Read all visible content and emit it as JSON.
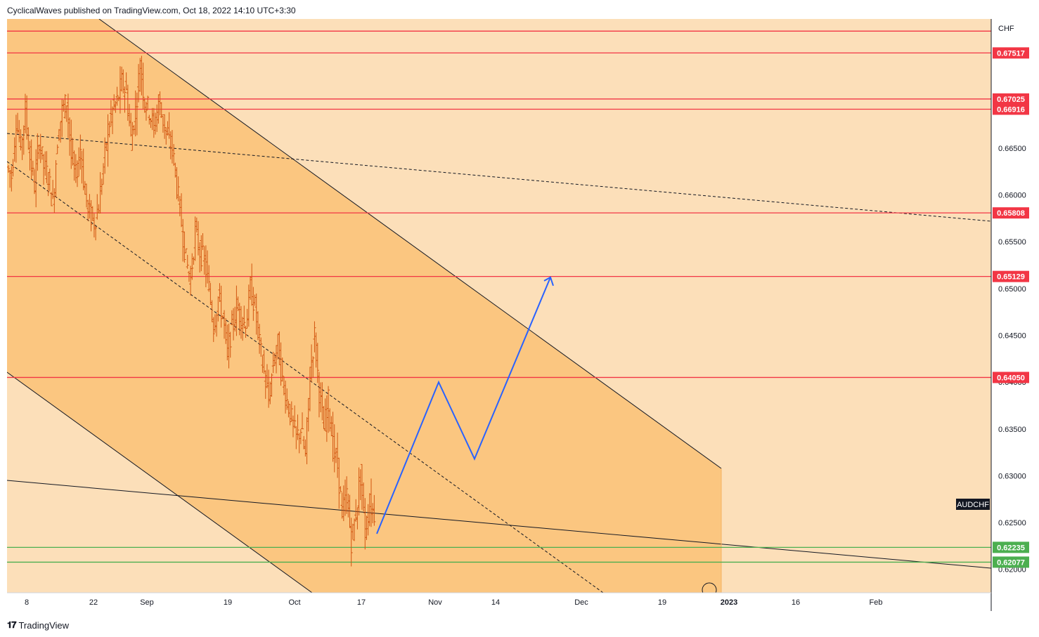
{
  "header": {
    "text": "CyclicalWaves published on TradingView.com, Oct 18, 2022 14:10 UTC+3:30"
  },
  "footer": {
    "logo_text": "TradingView"
  },
  "colors": {
    "bg_light": "#fcdfb9",
    "channel_fill": "#fbc680",
    "resistance": "#f23645",
    "support": "#4caf50",
    "forecast": "#2962ff",
    "candle": "#d25510"
  },
  "chart_data": {
    "type": "candlestick",
    "symbol": "AUDCHF",
    "currency": "CHF",
    "ylim": [
      0.6175,
      0.6788
    ],
    "y_ticks": [
      "0.62000",
      "0.62500",
      "0.63000",
      "0.63500",
      "0.64000",
      "0.64500",
      "0.65000",
      "0.65500",
      "0.66000",
      "0.66500"
    ],
    "x_ticks": [
      "8",
      "22",
      "Sep",
      "19",
      "Oct",
      "17",
      "Nov",
      "14",
      "Dec",
      "19",
      "2023",
      "16",
      "Feb"
    ],
    "resistance_levels": [
      0.6775,
      0.67517,
      0.67025,
      0.66916,
      0.65808,
      0.65129,
      0.6405
    ],
    "support_levels": [
      0.62235,
      0.62077
    ],
    "price_labels": [
      {
        "text": "0.67517",
        "value": 0.67517,
        "kind": "resistance"
      },
      {
        "text": "0.67025",
        "value": 0.67025,
        "kind": "resistance"
      },
      {
        "text": "0.66916",
        "value": 0.66916,
        "kind": "resistance"
      },
      {
        "text": "0.65808",
        "value": 0.65808,
        "kind": "resistance"
      },
      {
        "text": "0.65129",
        "value": 0.65129,
        "kind": "resistance"
      },
      {
        "text": "0.64050",
        "value": 0.6405,
        "kind": "resistance"
      },
      {
        "text": "0.62235",
        "value": 0.62235,
        "kind": "support"
      },
      {
        "text": "0.62077",
        "value": 0.62077,
        "kind": "support"
      }
    ],
    "forecast_path": [
      0.6238,
      0.64,
      0.6318,
      0.6512
    ],
    "close_series": [
      0.662,
      0.668,
      0.665,
      0.669,
      0.664,
      0.661,
      0.666,
      0.663,
      0.662,
      0.659,
      0.666,
      0.669,
      0.67,
      0.664,
      0.662,
      0.665,
      0.66,
      0.658,
      0.657,
      0.659,
      0.663,
      0.667,
      0.669,
      0.67,
      0.672,
      0.671,
      0.666,
      0.669,
      0.674,
      0.67,
      0.669,
      0.667,
      0.67,
      0.668,
      0.666,
      0.665,
      0.661,
      0.657,
      0.653,
      0.651,
      0.656,
      0.654,
      0.653,
      0.65,
      0.646,
      0.649,
      0.647,
      0.643,
      0.646,
      0.648,
      0.647,
      0.646,
      0.65,
      0.648,
      0.644,
      0.641,
      0.638,
      0.642,
      0.644,
      0.64,
      0.638,
      0.636,
      0.634,
      0.635,
      0.632,
      0.641,
      0.645,
      0.639,
      0.635,
      0.638,
      0.633,
      0.631,
      0.626,
      0.628,
      0.623,
      0.626,
      0.63,
      0.624,
      0.627,
      0.626
    ]
  }
}
